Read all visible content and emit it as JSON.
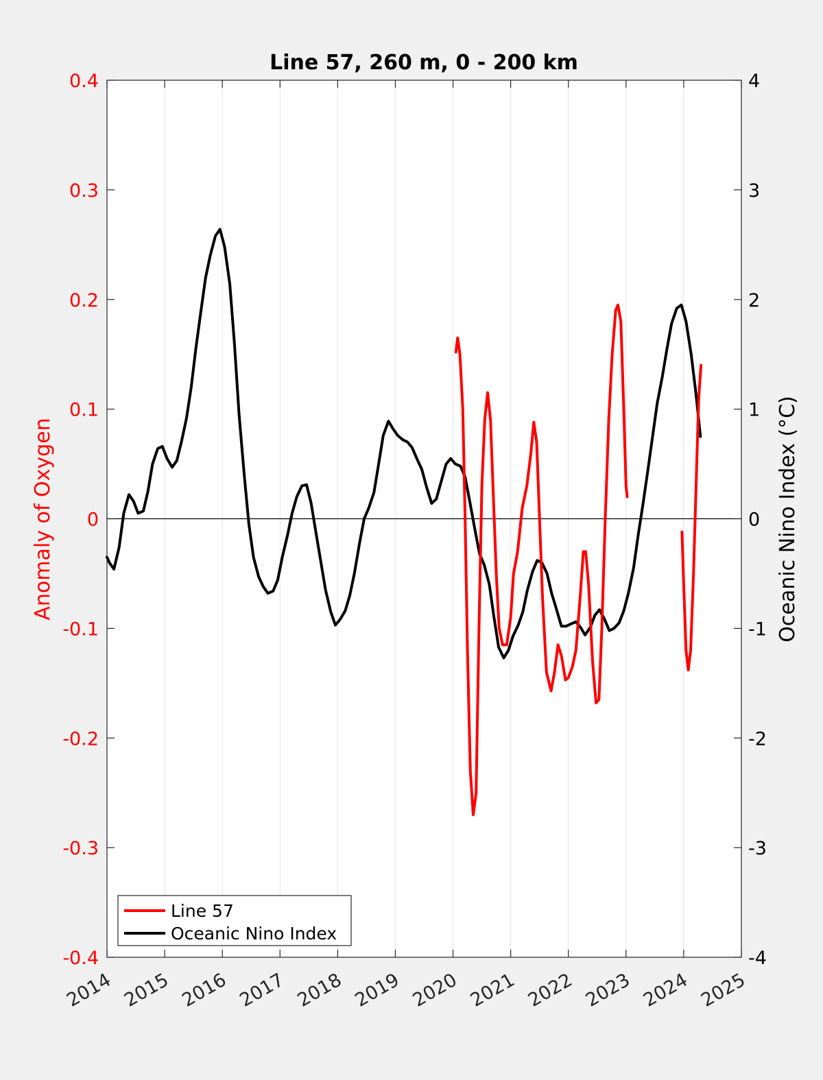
{
  "chart_data": {
    "type": "line",
    "title": "Line 57, 260 m, 0 - 200 km",
    "xlim": [
      2014,
      2025
    ],
    "x_ticks": [
      "2014",
      "2015",
      "2016",
      "2017",
      "2018",
      "2019",
      "2020",
      "2021",
      "2022",
      "2023",
      "2024",
      "2025"
    ],
    "y_left": {
      "label": "Anomaly of Oxygen",
      "lim": [
        -0.4,
        0.4
      ],
      "ticks": [
        "-0.4",
        "-0.3",
        "-0.2",
        "-0.1",
        "0",
        "0.1",
        "0.2",
        "0.3",
        "0.4"
      ],
      "color": "#ff0000"
    },
    "y_right": {
      "label": "Oceanic Nino Index (°C)",
      "lim": [
        -4,
        4
      ],
      "ticks": [
        "-4",
        "-3",
        "-2",
        "-1",
        "0",
        "1",
        "2",
        "3",
        "4"
      ],
      "color": "#000000"
    },
    "grid": "vertical",
    "legend_position": "bottom-left",
    "series": [
      {
        "name": "Line 57",
        "axis": "left",
        "color": "#ff0000",
        "segments": [
          [
            [
              2020.05,
              0.152
            ],
            [
              2020.08,
              0.165
            ],
            [
              2020.12,
              0.15
            ],
            [
              2020.17,
              0.1
            ],
            [
              2020.21,
              0.0
            ],
            [
              2020.25,
              -0.12
            ],
            [
              2020.3,
              -0.23
            ],
            [
              2020.35,
              -0.27
            ],
            [
              2020.4,
              -0.25
            ],
            [
              2020.45,
              -0.1
            ],
            [
              2020.5,
              0.03
            ],
            [
              2020.55,
              0.09
            ],
            [
              2020.6,
              0.115
            ],
            [
              2020.65,
              0.09
            ],
            [
              2020.7,
              0.02
            ],
            [
              2020.75,
              -0.05
            ],
            [
              2020.8,
              -0.1
            ],
            [
              2020.86,
              -0.115
            ],
            [
              2020.93,
              -0.115
            ],
            [
              2021.0,
              -0.09
            ],
            [
              2021.05,
              -0.05
            ],
            [
              2021.12,
              -0.03
            ],
            [
              2021.2,
              0.01
            ],
            [
              2021.28,
              0.03
            ],
            [
              2021.35,
              0.06
            ],
            [
              2021.4,
              0.088
            ],
            [
              2021.45,
              0.07
            ],
            [
              2021.5,
              0.0
            ],
            [
              2021.55,
              -0.07
            ],
            [
              2021.62,
              -0.14
            ],
            [
              2021.7,
              -0.157
            ],
            [
              2021.76,
              -0.14
            ],
            [
              2021.82,
              -0.115
            ],
            [
              2021.88,
              -0.125
            ],
            [
              2021.95,
              -0.147
            ],
            [
              2022.0,
              -0.145
            ],
            [
              2022.07,
              -0.135
            ],
            [
              2022.13,
              -0.12
            ],
            [
              2022.2,
              -0.075
            ],
            [
              2022.26,
              -0.03
            ],
            [
              2022.3,
              -0.03
            ],
            [
              2022.35,
              -0.06
            ],
            [
              2022.42,
              -0.13
            ],
            [
              2022.48,
              -0.168
            ],
            [
              2022.53,
              -0.165
            ],
            [
              2022.58,
              -0.1
            ],
            [
              2022.64,
              0.0
            ],
            [
              2022.7,
              0.09
            ],
            [
              2022.76,
              0.15
            ],
            [
              2022.82,
              0.19
            ],
            [
              2022.86,
              0.195
            ],
            [
              2022.91,
              0.18
            ],
            [
              2022.96,
              0.1
            ],
            [
              2023.0,
              0.03
            ],
            [
              2023.02,
              0.02
            ]
          ],
          [
            [
              2023.97,
              -0.012
            ],
            [
              2024.0,
              -0.06
            ],
            [
              2024.04,
              -0.12
            ],
            [
              2024.08,
              -0.138
            ],
            [
              2024.12,
              -0.12
            ],
            [
              2024.17,
              -0.05
            ],
            [
              2024.22,
              0.04
            ],
            [
              2024.26,
              0.11
            ],
            [
              2024.3,
              0.14
            ]
          ]
        ]
      },
      {
        "name": "Oceanic Nino Index",
        "axis": "right",
        "color": "#000000",
        "segments": [
          [
            [
              2014.0,
              -0.35
            ],
            [
              2014.04,
              -0.4
            ],
            [
              2014.12,
              -0.46
            ],
            [
              2014.21,
              -0.26
            ],
            [
              2014.29,
              0.05
            ],
            [
              2014.38,
              0.22
            ],
            [
              2014.46,
              0.16
            ],
            [
              2014.54,
              0.05
            ],
            [
              2014.63,
              0.07
            ],
            [
              2014.71,
              0.25
            ],
            [
              2014.79,
              0.5
            ],
            [
              2014.88,
              0.64
            ],
            [
              2014.96,
              0.66
            ],
            [
              2015.04,
              0.55
            ],
            [
              2015.13,
              0.47
            ],
            [
              2015.21,
              0.53
            ],
            [
              2015.29,
              0.7
            ],
            [
              2015.38,
              0.92
            ],
            [
              2015.46,
              1.2
            ],
            [
              2015.54,
              1.55
            ],
            [
              2015.63,
              1.9
            ],
            [
              2015.71,
              2.2
            ],
            [
              2015.79,
              2.4
            ],
            [
              2015.88,
              2.58
            ],
            [
              2015.96,
              2.64
            ],
            [
              2016.04,
              2.48
            ],
            [
              2016.13,
              2.14
            ],
            [
              2016.21,
              1.6
            ],
            [
              2016.29,
              0.95
            ],
            [
              2016.38,
              0.4
            ],
            [
              2016.46,
              -0.05
            ],
            [
              2016.54,
              -0.35
            ],
            [
              2016.63,
              -0.53
            ],
            [
              2016.71,
              -0.62
            ],
            [
              2016.79,
              -0.68
            ],
            [
              2016.88,
              -0.66
            ],
            [
              2016.96,
              -0.56
            ],
            [
              2017.04,
              -0.35
            ],
            [
              2017.13,
              -0.15
            ],
            [
              2017.21,
              0.05
            ],
            [
              2017.29,
              0.2
            ],
            [
              2017.38,
              0.3
            ],
            [
              2017.46,
              0.31
            ],
            [
              2017.54,
              0.14
            ],
            [
              2017.63,
              -0.15
            ],
            [
              2017.71,
              -0.4
            ],
            [
              2017.79,
              -0.65
            ],
            [
              2017.88,
              -0.85
            ],
            [
              2017.96,
              -0.97
            ],
            [
              2018.04,
              -0.92
            ],
            [
              2018.13,
              -0.84
            ],
            [
              2018.21,
              -0.7
            ],
            [
              2018.29,
              -0.5
            ],
            [
              2018.38,
              -0.22
            ],
            [
              2018.46,
              0.0
            ],
            [
              2018.54,
              0.1
            ],
            [
              2018.63,
              0.24
            ],
            [
              2018.71,
              0.5
            ],
            [
              2018.79,
              0.76
            ],
            [
              2018.88,
              0.89
            ],
            [
              2018.96,
              0.82
            ],
            [
              2019.04,
              0.76
            ],
            [
              2019.13,
              0.72
            ],
            [
              2019.21,
              0.7
            ],
            [
              2019.29,
              0.65
            ],
            [
              2019.38,
              0.54
            ],
            [
              2019.46,
              0.45
            ],
            [
              2019.54,
              0.29
            ],
            [
              2019.63,
              0.14
            ],
            [
              2019.71,
              0.18
            ],
            [
              2019.79,
              0.33
            ],
            [
              2019.88,
              0.5
            ],
            [
              2019.96,
              0.55
            ],
            [
              2020.04,
              0.5
            ],
            [
              2020.13,
              0.48
            ],
            [
              2020.21,
              0.38
            ],
            [
              2020.29,
              0.16
            ],
            [
              2020.38,
              -0.1
            ],
            [
              2020.46,
              -0.32
            ],
            [
              2020.54,
              -0.42
            ],
            [
              2020.63,
              -0.6
            ],
            [
              2020.71,
              -0.9
            ],
            [
              2020.79,
              -1.17
            ],
            [
              2020.88,
              -1.27
            ],
            [
              2020.96,
              -1.2
            ],
            [
              2021.04,
              -1.07
            ],
            [
              2021.13,
              -0.97
            ],
            [
              2021.21,
              -0.85
            ],
            [
              2021.29,
              -0.65
            ],
            [
              2021.38,
              -0.48
            ],
            [
              2021.46,
              -0.38
            ],
            [
              2021.54,
              -0.4
            ],
            [
              2021.63,
              -0.5
            ],
            [
              2021.71,
              -0.68
            ],
            [
              2021.79,
              -0.82
            ],
            [
              2021.88,
              -0.98
            ],
            [
              2021.96,
              -0.98
            ],
            [
              2022.04,
              -0.96
            ],
            [
              2022.13,
              -0.94
            ],
            [
              2022.21,
              -0.99
            ],
            [
              2022.29,
              -1.06
            ],
            [
              2022.38,
              -0.99
            ],
            [
              2022.46,
              -0.88
            ],
            [
              2022.54,
              -0.83
            ],
            [
              2022.63,
              -0.92
            ],
            [
              2022.71,
              -1.02
            ],
            [
              2022.79,
              -1.0
            ],
            [
              2022.88,
              -0.95
            ],
            [
              2022.96,
              -0.84
            ],
            [
              2023.04,
              -0.68
            ],
            [
              2023.13,
              -0.45
            ],
            [
              2023.21,
              -0.15
            ],
            [
              2023.29,
              0.12
            ],
            [
              2023.38,
              0.45
            ],
            [
              2023.46,
              0.75
            ],
            [
              2023.54,
              1.05
            ],
            [
              2023.63,
              1.3
            ],
            [
              2023.71,
              1.55
            ],
            [
              2023.79,
              1.78
            ],
            [
              2023.88,
              1.92
            ],
            [
              2023.96,
              1.95
            ],
            [
              2024.04,
              1.8
            ],
            [
              2024.13,
              1.5
            ],
            [
              2024.21,
              1.15
            ],
            [
              2024.29,
              0.75
            ]
          ]
        ]
      }
    ]
  }
}
